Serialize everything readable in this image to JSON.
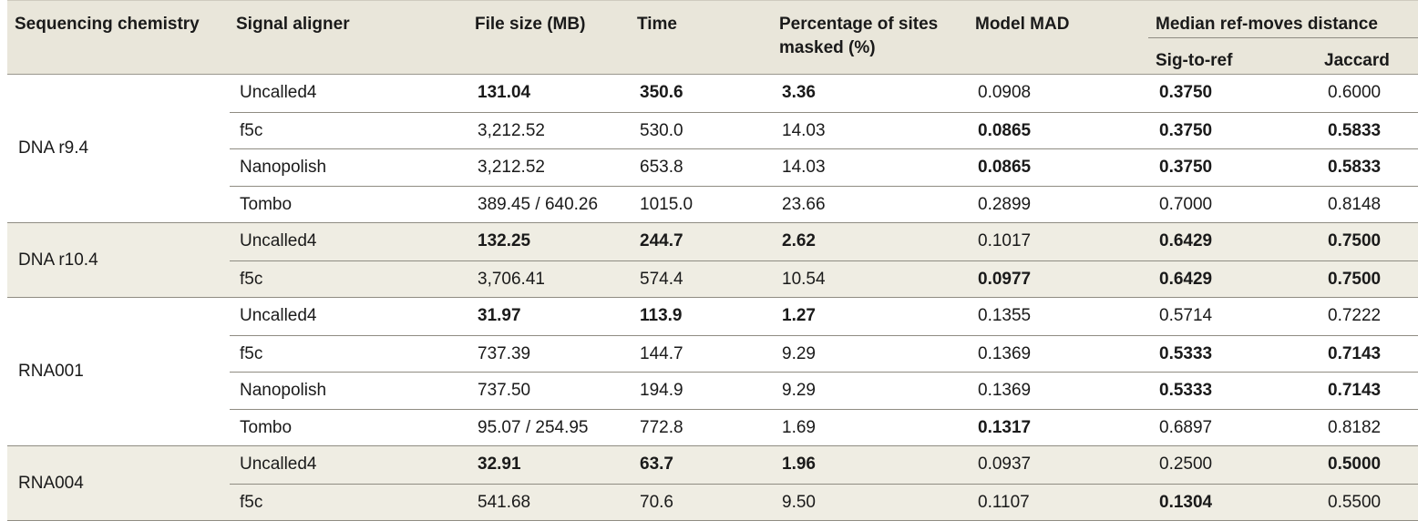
{
  "headers": {
    "chemistry": "Sequencing chemistry",
    "aligner": "Signal aligner",
    "file_size": "File size (MB)",
    "time": "Time",
    "masked_line1": "Percentage of sites",
    "masked_line2": "masked (%)",
    "model_mad": "Model MAD",
    "median_group": "Median ref-moves distance",
    "sig_to_ref": "Sig-to-ref",
    "jaccard": "Jaccard"
  },
  "groups": [
    {
      "chemistry": "DNA r9.4",
      "shaded": false,
      "rows": [
        {
          "aligner": "Uncalled4",
          "file_size": "131.04",
          "time": "350.6",
          "masked": "3.36",
          "mad": "0.0908",
          "sig": "0.3750",
          "jac": "0.6000",
          "bold": [
            "file_size",
            "time",
            "masked",
            "sig"
          ]
        },
        {
          "aligner": "f5c",
          "file_size": "3,212.52",
          "time": "530.0",
          "masked": "14.03",
          "mad": "0.0865",
          "sig": "0.3750",
          "jac": "0.5833",
          "bold": [
            "mad",
            "sig",
            "jac"
          ]
        },
        {
          "aligner": "Nanopolish",
          "file_size": "3,212.52",
          "time": "653.8",
          "masked": "14.03",
          "mad": "0.0865",
          "sig": "0.3750",
          "jac": "0.5833",
          "bold": [
            "mad",
            "sig",
            "jac"
          ]
        },
        {
          "aligner": "Tombo",
          "file_size": "389.45 / 640.26",
          "time": "1015.0",
          "masked": "23.66",
          "mad": "0.2899",
          "sig": "0.7000",
          "jac": "0.8148",
          "bold": []
        }
      ]
    },
    {
      "chemistry": "DNA r10.4",
      "shaded": true,
      "rows": [
        {
          "aligner": "Uncalled4",
          "file_size": "132.25",
          "time": "244.7",
          "masked": "2.62",
          "mad": "0.1017",
          "sig": "0.6429",
          "jac": "0.7500",
          "bold": [
            "file_size",
            "time",
            "masked",
            "sig",
            "jac"
          ]
        },
        {
          "aligner": "f5c",
          "file_size": "3,706.41",
          "time": "574.4",
          "masked": "10.54",
          "mad": "0.0977",
          "sig": "0.6429",
          "jac": "0.7500",
          "bold": [
            "mad",
            "sig",
            "jac"
          ]
        }
      ]
    },
    {
      "chemistry": "RNA001",
      "shaded": false,
      "rows": [
        {
          "aligner": "Uncalled4",
          "file_size": "31.97",
          "time": "113.9",
          "masked": "1.27",
          "mad": "0.1355",
          "sig": "0.5714",
          "jac": "0.7222",
          "bold": [
            "file_size",
            "time",
            "masked"
          ]
        },
        {
          "aligner": "f5c",
          "file_size": "737.39",
          "time": "144.7",
          "masked": "9.29",
          "mad": "0.1369",
          "sig": "0.5333",
          "jac": "0.7143",
          "bold": [
            "sig",
            "jac"
          ]
        },
        {
          "aligner": "Nanopolish",
          "file_size": "737.50",
          "time": "194.9",
          "masked": "9.29",
          "mad": "0.1369",
          "sig": "0.5333",
          "jac": "0.7143",
          "bold": [
            "sig",
            "jac"
          ]
        },
        {
          "aligner": "Tombo",
          "file_size": "95.07 / 254.95",
          "time": "772.8",
          "masked": "1.69",
          "mad": "0.1317",
          "sig": "0.6897",
          "jac": "0.8182",
          "bold": [
            "mad"
          ]
        }
      ]
    },
    {
      "chemistry": "RNA004",
      "shaded": true,
      "rows": [
        {
          "aligner": "Uncalled4",
          "file_size": "32.91",
          "time": "63.7",
          "masked": "1.96",
          "mad": "0.0937",
          "sig": "0.2500",
          "jac": "0.5000",
          "bold": [
            "file_size",
            "time",
            "masked",
            "jac"
          ]
        },
        {
          "aligner": "f5c",
          "file_size": "541.68",
          "time": "70.6",
          "masked": "9.50",
          "mad": "0.1107",
          "sig": "0.1304",
          "jac": "0.5500",
          "bold": [
            "sig"
          ]
        }
      ]
    }
  ]
}
